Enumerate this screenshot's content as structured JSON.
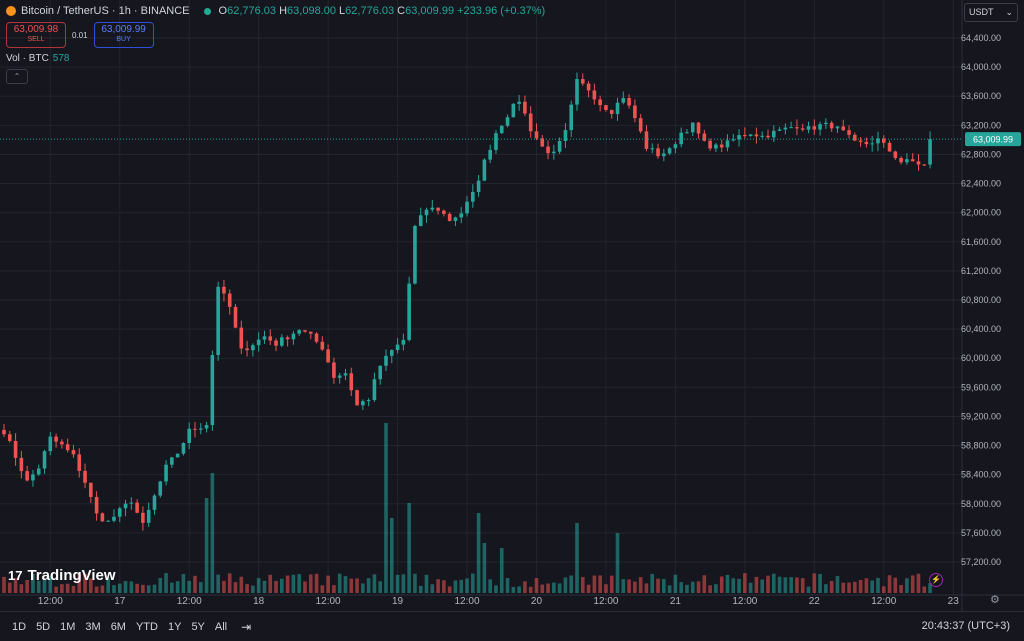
{
  "header": {
    "symbol": "Bitcoin / TetherUS · 1h · BINANCE",
    "o_label": "O",
    "o": "62,776.03",
    "h_label": "H",
    "h": "63,098.00",
    "l_label": "L",
    "l": "62,776.03",
    "c_label": "C",
    "c": "63,009.99",
    "change": "+233.96 (+0.37%)"
  },
  "trade": {
    "sell_price": "63,009.98",
    "sell_label": "SELL",
    "spread": "0.01",
    "buy_price": "63,009.99",
    "buy_label": "BUY"
  },
  "volume": {
    "label": "Vol · BTC",
    "value": "578"
  },
  "currency": {
    "label": "USDT",
    "chevron": "⌄"
  },
  "watermark": "TradingView",
  "bottom": {
    "ranges": [
      "1D",
      "5D",
      "1M",
      "3M",
      "6M",
      "YTD",
      "1Y",
      "5Y",
      "All"
    ],
    "time": "20:43:37 (UTC+3)"
  },
  "icons": {
    "calendar": "calendar-icon",
    "gear": "gear-icon",
    "bolt": "lightning-icon"
  },
  "colors": {
    "up": "#26a69a",
    "down": "#ef5350",
    "background": "#15161e",
    "grid": "#22252f"
  },
  "chart_data": {
    "type": "candlestick",
    "title": "",
    "ylim": [
      56800,
      64600
    ],
    "y_ticks": [
      57200,
      57600,
      58000,
      58400,
      58800,
      59200,
      59600,
      60000,
      60400,
      60800,
      61200,
      61600,
      62000,
      62400,
      62800,
      63200,
      63600,
      64000,
      64400
    ],
    "y_tick_labels": [
      "57,200.00",
      "57,600.00",
      "58,000.00",
      "58,400.00",
      "58,800.00",
      "59,200.00",
      "59,600.00",
      "60,000.00",
      "60,400.00",
      "60,800.00",
      "61,200.00",
      "61,600.00",
      "62,000.00",
      "62,400.00",
      "62,800.00",
      "63,200.00",
      "63,600.00",
      "64,000.00",
      "64,400.00"
    ],
    "x_ticks": [
      {
        "index": 8,
        "label": "12:00"
      },
      {
        "index": 20,
        "label": "17"
      },
      {
        "index": 32,
        "label": "12:00"
      },
      {
        "index": 44,
        "label": "18"
      },
      {
        "index": 56,
        "label": "12:00"
      },
      {
        "index": 68,
        "label": "19"
      },
      {
        "index": 80,
        "label": "12:00"
      },
      {
        "index": 92,
        "label": "20"
      },
      {
        "index": 104,
        "label": "12:00"
      },
      {
        "index": 116,
        "label": "21"
      },
      {
        "index": 128,
        "label": "12:00"
      },
      {
        "index": 140,
        "label": "22"
      },
      {
        "index": 152,
        "label": "12:00"
      },
      {
        "index": 164,
        "label": "23"
      }
    ],
    "last_price": 63009.99,
    "last_price_label": "63,009.99",
    "anchors": [
      [
        0,
        59000
      ],
      [
        2,
        58650
      ],
      [
        4,
        58300
      ],
      [
        6,
        58500
      ],
      [
        8,
        58900
      ],
      [
        10,
        58800
      ],
      [
        12,
        58650
      ],
      [
        14,
        58300
      ],
      [
        16,
        57850
      ],
      [
        18,
        57750
      ],
      [
        20,
        57900
      ],
      [
        22,
        58050
      ],
      [
        24,
        57700
      ],
      [
        26,
        58100
      ],
      [
        28,
        58500
      ],
      [
        30,
        58700
      ],
      [
        32,
        59000
      ],
      [
        35,
        59100
      ],
      [
        37,
        61000
      ],
      [
        39,
        60700
      ],
      [
        41,
        60100
      ],
      [
        43,
        60200
      ],
      [
        45,
        60300
      ],
      [
        47,
        60200
      ],
      [
        49,
        60300
      ],
      [
        51,
        60400
      ],
      [
        53,
        60300
      ],
      [
        55,
        60150
      ],
      [
        57,
        59750
      ],
      [
        59,
        59800
      ],
      [
        61,
        59350
      ],
      [
        63,
        59450
      ],
      [
        65,
        59900
      ],
      [
        67,
        60100
      ],
      [
        69,
        60250
      ],
      [
        71,
        61800
      ],
      [
        73,
        62050
      ],
      [
        75,
        62050
      ],
      [
        77,
        61900
      ],
      [
        79,
        62000
      ],
      [
        81,
        62250
      ],
      [
        83,
        62700
      ],
      [
        85,
        63100
      ],
      [
        87,
        63350
      ],
      [
        89,
        63550
      ],
      [
        91,
        63150
      ],
      [
        93,
        62900
      ],
      [
        95,
        62800
      ],
      [
        97,
        63100
      ],
      [
        99,
        63800
      ],
      [
        101,
        63700
      ],
      [
        103,
        63500
      ],
      [
        105,
        63400
      ],
      [
        107,
        63600
      ],
      [
        109,
        63300
      ],
      [
        111,
        62900
      ],
      [
        113,
        62800
      ],
      [
        115,
        62850
      ],
      [
        117,
        63100
      ],
      [
        119,
        63200
      ],
      [
        121,
        62950
      ],
      [
        123,
        62900
      ],
      [
        125,
        62950
      ],
      [
        127,
        63050
      ],
      [
        129,
        63100
      ],
      [
        131,
        63050
      ],
      [
        133,
        63100
      ],
      [
        135,
        63150
      ],
      [
        137,
        63200
      ],
      [
        139,
        63150
      ],
      [
        141,
        63200
      ],
      [
        143,
        63200
      ],
      [
        145,
        63100
      ],
      [
        147,
        62950
      ],
      [
        149,
        62950
      ],
      [
        151,
        63000
      ],
      [
        153,
        62850
      ],
      [
        155,
        62700
      ],
      [
        157,
        62700
      ],
      [
        159,
        62650
      ],
      [
        160,
        63010
      ]
    ],
    "volume_spikes": {
      "35": 95,
      "36": 120,
      "66": 170,
      "67": 75,
      "70": 90,
      "82": 80,
      "99": 70,
      "106": 60,
      "86": 45,
      "83": 50
    }
  }
}
